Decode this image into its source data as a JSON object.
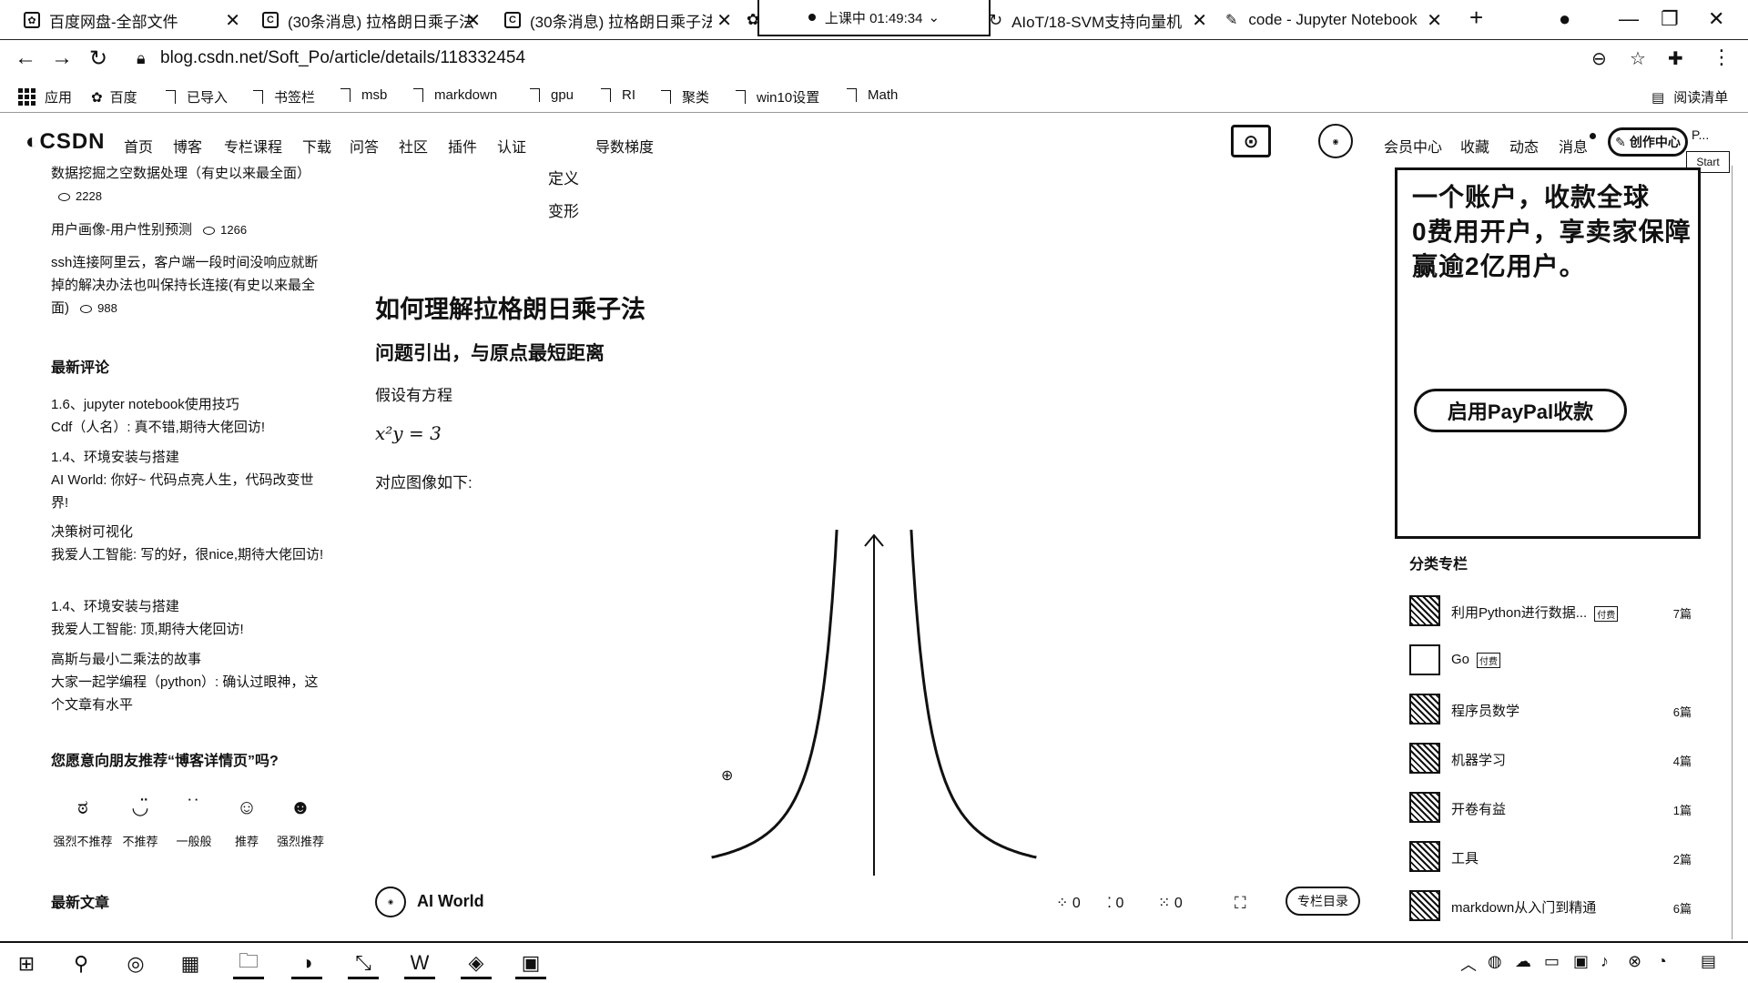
{
  "browser": {
    "tabs": [
      {
        "label": "百度网盘-全部文件",
        "icon": "paw-icon"
      },
      {
        "label": "(30条消息) 拉格朗日乘子法",
        "icon": "csdn-c-icon"
      },
      {
        "label": "(30条消息) 拉格朗日乘子法",
        "icon": "csdn-c-icon"
      },
      {
        "label": "AIoT/18-SVM支持向量机",
        "icon": "loading-icon"
      },
      {
        "label": "code - Jupyter Notebook",
        "icon": "jupyter-icon"
      }
    ],
    "lesson_status": "上课中 01:49:34",
    "url": "blog.csdn.net/Soft_Po/article/details/118332454",
    "bookmarks": [
      "应用",
      "百度",
      "已导入",
      "书签栏",
      "msb",
      "markdown",
      "gpu",
      "RI",
      "聚类",
      "win10设置",
      "Math"
    ],
    "reading_list": "阅读清单"
  },
  "csdn_nav": {
    "logo": "CSDN",
    "items": [
      "首页",
      "博客",
      "专栏课程",
      "下载",
      "问答",
      "社区",
      "插件",
      "认证"
    ],
    "search_hint": "导数梯度",
    "right_items": [
      "会员中心",
      "收藏",
      "动态",
      "消息"
    ],
    "create_label": "创作中心",
    "start_tip": "Start",
    "user_short": "P..."
  },
  "left_sidebar": {
    "hot_articles": [
      {
        "title": "数据挖掘之空数据处理（有史以来最全面）",
        "views": "2228"
      },
      {
        "title": "用户画像-用户性别预测",
        "views": "1266"
      },
      {
        "title": "ssh连接阿里云，客户端一段时间没响应就断掉的解决办法也叫保持长连接(有史以来最全面)",
        "views": "988"
      }
    ],
    "comments_title": "最新评论",
    "comments": [
      {
        "article": "1.6、jupyter notebook使用技巧",
        "text": "Cdf（人名）: 真不错,期待大佬回访!"
      },
      {
        "article": "1.4、环境安装与搭建",
        "text": "AI World: 你好~ 代码点亮人生，代码改变世界!"
      },
      {
        "article": "决策树可视化",
        "text": "我爱人工智能: 写的好，很nice,期待大佬回访!"
      },
      {
        "article": "1.4、环境安装与搭建",
        "text": "我爱人工智能: 顶,期待大佬回访!"
      },
      {
        "article": "高斯与最小二乘法的故事",
        "text": "大家一起学编程（python）: 确认过眼神，这个文章有水平"
      }
    ],
    "recommend_question": "您愿意向朋友推荐“博客详情页”吗?",
    "ratings": [
      "强烈不推荐",
      "不推荐",
      "一般般",
      "推荐",
      "强烈推荐"
    ],
    "latest_title": "最新文章"
  },
  "article": {
    "toc": [
      "定义",
      "变形"
    ],
    "title": "如何理解拉格朗日乘子法",
    "subtitle": "问题引出，与原点最短距离",
    "para1": "假设有方程",
    "equation": "x²y = 3",
    "para2": "对应图像如下:"
  },
  "author_bar": {
    "name": "AI World",
    "likes": "0",
    "comments": "0",
    "favorites": "0",
    "column_button": "专栏目录"
  },
  "right_sidebar": {
    "ad": {
      "line1": "一个账户，收款全球",
      "line2": "0费用开户，享卖家保障",
      "line3": "赢逾2亿用户。",
      "button": "启用PayPal收款"
    },
    "columns_title": "分类专栏",
    "columns": [
      {
        "name": "利用Python进行数据...",
        "paid": "付费",
        "count": "7篇"
      },
      {
        "name": "Go",
        "paid": "付费",
        "count": ""
      },
      {
        "name": "程序员数学",
        "paid": "",
        "count": "6篇"
      },
      {
        "name": "机器学习",
        "paid": "",
        "count": "4篇"
      },
      {
        "name": "开卷有益",
        "paid": "",
        "count": "1篇"
      },
      {
        "name": "工具",
        "paid": "",
        "count": "2篇"
      },
      {
        "name": "markdown从入门到精通",
        "paid": "",
        "count": "6篇"
      }
    ]
  },
  "plot": {
    "type": "line",
    "function": "y = 3 / x²",
    "x_range": [
      -2.2,
      2.2
    ],
    "y_range": [
      0,
      12
    ]
  }
}
